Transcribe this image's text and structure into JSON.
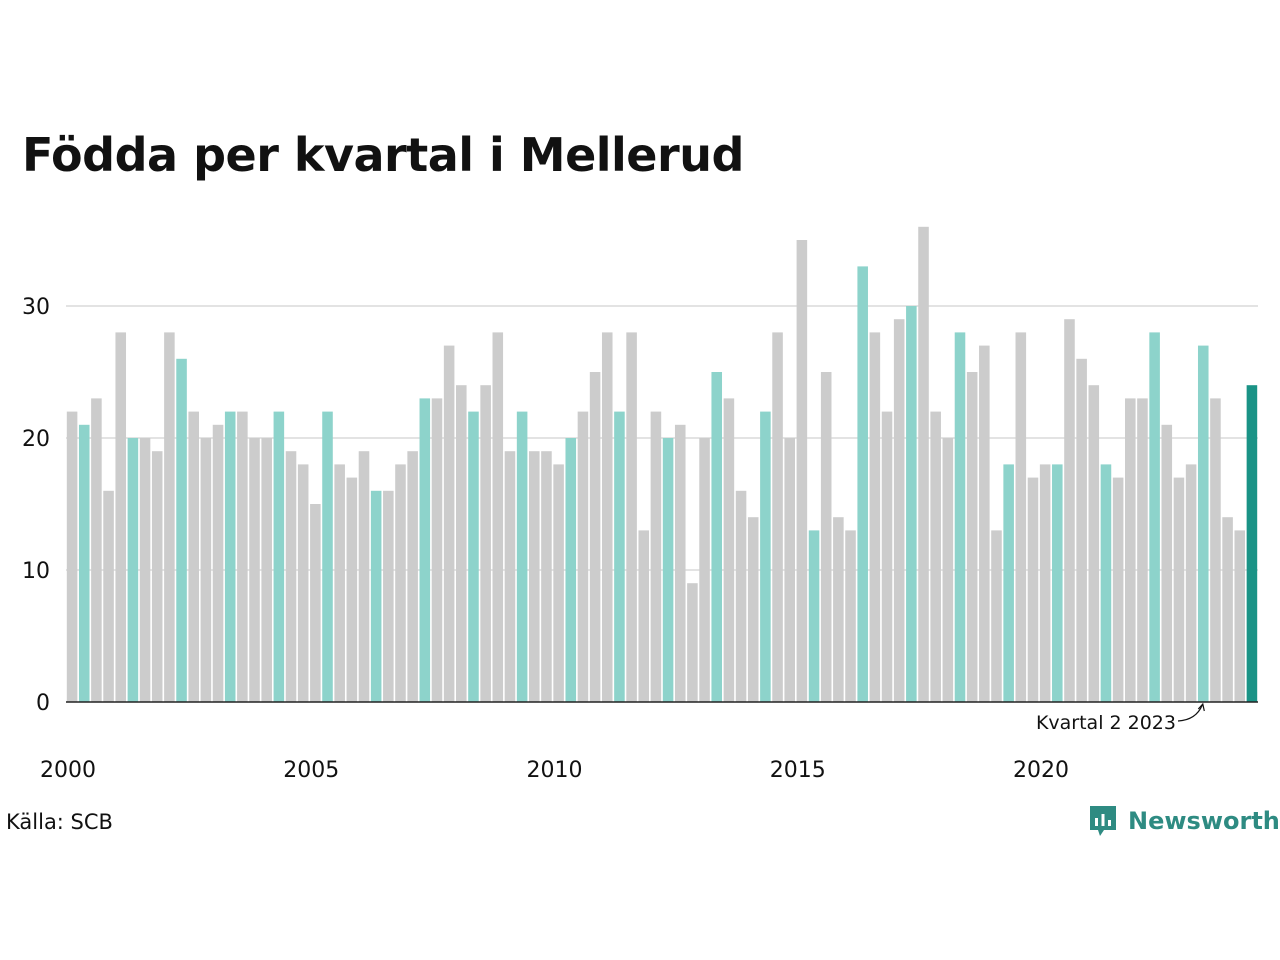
{
  "title": "Födda per kvartal i Mellerud",
  "source": "Källa: SCB",
  "brand": {
    "name": "Newsworthy",
    "icon": "newsworthy-logo-icon"
  },
  "colors": {
    "q2": "#8dd3cb",
    "other": "#cccccc",
    "latest": "#1a9386",
    "grid": "#e3e3e3",
    "axis": "#222222"
  },
  "chart_data": {
    "type": "bar",
    "title": "Födda per kvartal i Mellerud",
    "xlabel": "",
    "ylabel": "",
    "ylim": [
      0,
      36
    ],
    "yticks": [
      "0",
      "10",
      "20",
      "30"
    ],
    "xticks": [
      "2000",
      "2005",
      "2010",
      "2015",
      "2020"
    ],
    "grid": true,
    "start_year": 2000,
    "annotation": "Kvartal 2 2023",
    "values": [
      22,
      21,
      23,
      16,
      28,
      20,
      20,
      19,
      28,
      26,
      22,
      20,
      21,
      22,
      22,
      20,
      20,
      22,
      19,
      18,
      15,
      22,
      18,
      17,
      19,
      16,
      16,
      18,
      19,
      23,
      23,
      27,
      24,
      22,
      24,
      28,
      19,
      22,
      19,
      19,
      18,
      20,
      22,
      25,
      28,
      22,
      28,
      13,
      22,
      20,
      21,
      9,
      20,
      25,
      23,
      16,
      14,
      22,
      28,
      20,
      35,
      13,
      25,
      14,
      13,
      33,
      28,
      22,
      29,
      30,
      36,
      22,
      20,
      28,
      25,
      27,
      13,
      18,
      28,
      17,
      18,
      18,
      29,
      26,
      24,
      18,
      17,
      23,
      23,
      28,
      21,
      17,
      18,
      27,
      23,
      14,
      13,
      24
    ]
  }
}
